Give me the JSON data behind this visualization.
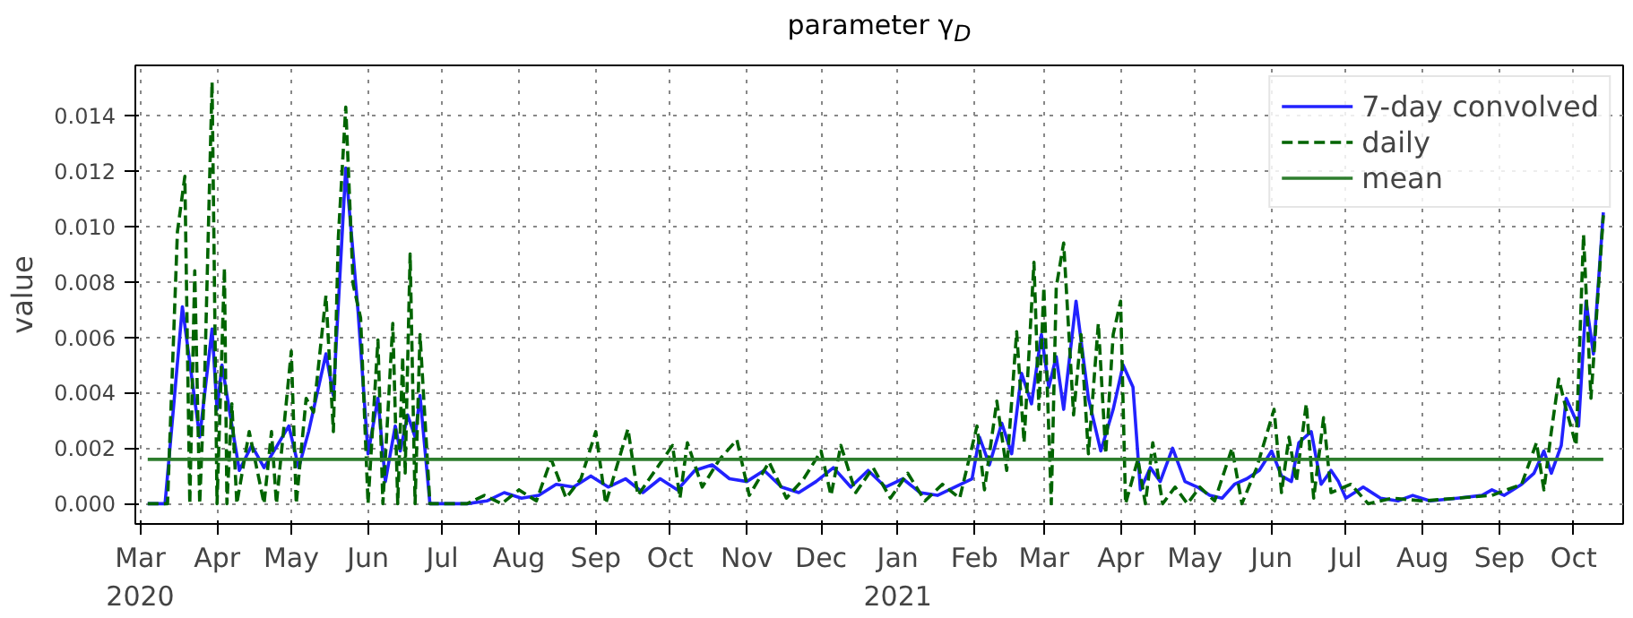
{
  "chart_data": {
    "type": "line",
    "title": "parameter γ$_{D}$",
    "ylabel": "value",
    "xlim": [
      "2020-02-28",
      "2021-10-21"
    ],
    "ylim": [
      -0.00073,
      0.0158
    ],
    "yticks": [
      {
        "value": 0,
        "label": "0.000"
      },
      {
        "value": 0.002,
        "label": "0.002"
      },
      {
        "value": 0.004,
        "label": "0.004"
      },
      {
        "value": 0.006,
        "label": "0.006"
      },
      {
        "value": 0.008,
        "label": "0.008"
      },
      {
        "value": 0.01,
        "label": "0.010"
      },
      {
        "value": 0.012,
        "label": "0.012"
      },
      {
        "value": 0.014,
        "label": "0.014"
      }
    ],
    "xticks": [
      {
        "value": "2020-03-01",
        "label": "Mar\n2020"
      },
      {
        "value": "2020-04-01",
        "label": "Apr"
      },
      {
        "value": "2020-05-01",
        "label": "May"
      },
      {
        "value": "2020-06-01",
        "label": "Jun"
      },
      {
        "value": "2020-07-01",
        "label": "Jul"
      },
      {
        "value": "2020-08-01",
        "label": "Aug"
      },
      {
        "value": "2020-09-01",
        "label": "Sep"
      },
      {
        "value": "2020-10-01",
        "label": "Oct"
      },
      {
        "value": "2020-11-01",
        "label": "Nov"
      },
      {
        "value": "2020-12-01",
        "label": "Dec"
      },
      {
        "value": "2021-01-01",
        "label": "Jan\n2021"
      },
      {
        "value": "2021-02-01",
        "label": "Feb"
      },
      {
        "value": "2021-03-01",
        "label": "Mar"
      },
      {
        "value": "2021-04-01",
        "label": "Apr"
      },
      {
        "value": "2021-05-01",
        "label": "May"
      },
      {
        "value": "2021-06-01",
        "label": "Jun"
      },
      {
        "value": "2021-07-01",
        "label": "Jul"
      },
      {
        "value": "2021-08-01",
        "label": "Aug"
      },
      {
        "value": "2021-09-01",
        "label": "Sep"
      },
      {
        "value": "2021-10-01",
        "label": "Oct"
      }
    ],
    "grid": true,
    "legend": "top right",
    "series": [
      {
        "name": "7-day convolved",
        "color": "#2222ff",
        "line_style": "solid",
        "x": [
          "2020-03-04",
          "2020-03-11",
          "2020-03-18",
          "2020-03-25",
          "2020-03-30",
          "2020-04-01",
          "2020-04-03",
          "2020-04-10",
          "2020-04-15",
          "2020-04-20",
          "2020-04-30",
          "2020-05-04",
          "2020-05-08",
          "2020-05-15",
          "2020-05-18",
          "2020-05-23",
          "2020-05-28",
          "2020-06-01",
          "2020-06-05",
          "2020-06-08",
          "2020-06-12",
          "2020-06-14",
          "2020-06-17",
          "2020-06-20",
          "2020-06-22",
          "2020-06-26",
          "2020-07-11",
          "2020-07-19",
          "2020-07-26",
          "2020-08-02",
          "2020-08-09",
          "2020-08-16",
          "2020-08-23",
          "2020-08-30",
          "2020-09-06",
          "2020-09-13",
          "2020-09-20",
          "2020-09-27",
          "2020-10-04",
          "2020-10-11",
          "2020-10-18",
          "2020-10-25",
          "2020-11-01",
          "2020-11-08",
          "2020-11-15",
          "2020-11-22",
          "2020-11-29",
          "2020-12-06",
          "2020-12-13",
          "2020-12-20",
          "2020-12-27",
          "2021-01-03",
          "2021-01-10",
          "2021-01-17",
          "2021-01-24",
          "2021-01-31",
          "2021-02-03",
          "2021-02-07",
          "2021-02-12",
          "2021-02-16",
          "2021-02-20",
          "2021-02-24",
          "2021-02-28",
          "2021-03-03",
          "2021-03-06",
          "2021-03-09",
          "2021-03-14",
          "2021-03-19",
          "2021-03-24",
          "2021-03-29",
          "2021-04-02",
          "2021-04-06",
          "2021-04-09",
          "2021-04-13",
          "2021-04-17",
          "2021-04-22",
          "2021-04-27",
          "2021-05-02",
          "2021-05-07",
          "2021-05-12",
          "2021-05-17",
          "2021-05-22",
          "2021-05-27",
          "2021-06-01",
          "2021-06-05",
          "2021-06-09",
          "2021-06-12",
          "2021-06-17",
          "2021-06-21",
          "2021-06-25",
          "2021-06-28",
          "2021-07-01",
          "2021-07-08",
          "2021-07-15",
          "2021-07-22",
          "2021-07-28",
          "2021-08-04",
          "2021-08-15",
          "2021-08-25",
          "2021-08-29",
          "2021-09-03",
          "2021-09-10",
          "2021-09-15",
          "2021-09-19",
          "2021-09-22",
          "2021-09-26",
          "2021-09-28",
          "2021-10-03",
          "2021-10-06",
          "2021-10-09",
          "2021-10-13"
        ],
        "values": [
          0,
          0,
          0.0071,
          0.0024,
          0.0063,
          0.0034,
          0.005,
          0.0012,
          0.0021,
          0.0013,
          0.0028,
          0.0013,
          0.0026,
          0.0054,
          0.0039,
          0.0121,
          0.0069,
          0.0018,
          0.0038,
          0.0008,
          0.0028,
          0.0019,
          0.0032,
          0.0024,
          0.0039,
          0,
          0,
          0.0001,
          0.0004,
          0.0002,
          0.0003,
          0.0007,
          0.0006,
          0.001,
          0.0006,
          0.0009,
          0.0004,
          0.0009,
          0.0005,
          0.0012,
          0.0014,
          0.0009,
          0.0008,
          0.0012,
          0.0006,
          0.0004,
          0.0008,
          0.0013,
          0.0006,
          0.0012,
          0.0006,
          0.0009,
          0.0004,
          0.0003,
          0.0006,
          0.0009,
          0.0024,
          0.0014,
          0.0029,
          0.0018,
          0.0047,
          0.0036,
          0.0061,
          0.0042,
          0.0053,
          0.0034,
          0.0073,
          0.0038,
          0.0019,
          0.0034,
          0.005,
          0.0042,
          0.0005,
          0.0013,
          0.0008,
          0.002,
          0.0008,
          0.0006,
          0.0003,
          0.0002,
          0.0007,
          0.0009,
          0.0012,
          0.0019,
          0.001,
          0.0008,
          0.0022,
          0.0026,
          0.0007,
          0.0012,
          0.0008,
          0.0002,
          0.0006,
          0.0002,
          0.0001,
          0.0003,
          0.0001,
          0.0002,
          0.0003,
          0.0005,
          0.0003,
          0.0007,
          0.0011,
          0.0019,
          0.0011,
          0.0021,
          0.0038,
          0.0028,
          0.0073,
          0.0054,
          0.0105
        ]
      },
      {
        "name": "daily",
        "color": "#006400",
        "line_style": "dashed",
        "x": [
          "2020-03-04",
          "2020-03-12",
          "2020-03-16",
          "2020-03-19",
          "2020-03-21",
          "2020-03-23",
          "2020-03-25",
          "2020-03-27",
          "2020-03-30",
          "2020-04-01",
          "2020-04-04",
          "2020-04-05",
          "2020-04-07",
          "2020-04-09",
          "2020-04-14",
          "2020-04-20",
          "2020-04-23",
          "2020-04-25",
          "2020-05-01",
          "2020-05-03",
          "2020-05-07",
          "2020-05-10",
          "2020-05-15",
          "2020-05-18",
          "2020-05-20",
          "2020-05-23",
          "2020-05-26",
          "2020-05-29",
          "2020-06-01",
          "2020-06-05",
          "2020-06-07",
          "2020-06-11",
          "2020-06-13",
          "2020-06-15",
          "2020-06-16",
          "2020-06-18",
          "2020-06-20",
          "2020-06-22",
          "2020-06-26",
          "2020-07-11",
          "2020-07-18",
          "2020-07-25",
          "2020-08-01",
          "2020-08-08",
          "2020-08-14",
          "2020-08-20",
          "2020-08-26",
          "2020-09-01",
          "2020-09-05",
          "2020-09-14",
          "2020-09-18",
          "2020-09-25",
          "2020-10-02",
          "2020-10-05",
          "2020-10-08",
          "2020-10-14",
          "2020-10-21",
          "2020-10-28",
          "2020-11-02",
          "2020-11-10",
          "2020-11-17",
          "2020-11-24",
          "2020-12-01",
          "2020-12-05",
          "2020-12-09",
          "2020-12-15",
          "2020-12-22",
          "2020-12-29",
          "2021-01-05",
          "2021-01-12",
          "2021-01-19",
          "2021-01-26",
          "2021-02-02",
          "2021-02-05",
          "2021-02-10",
          "2021-02-14",
          "2021-02-18",
          "2021-02-21",
          "2021-02-25",
          "2021-02-27",
          "2021-03-01",
          "2021-03-04",
          "2021-03-06",
          "2021-03-09",
          "2021-03-13",
          "2021-03-16",
          "2021-03-19",
          "2021-03-23",
          "2021-03-26",
          "2021-03-29",
          "2021-04-01",
          "2021-04-03",
          "2021-04-08",
          "2021-04-11",
          "2021-04-14",
          "2021-04-18",
          "2021-04-23",
          "2021-04-28",
          "2021-05-03",
          "2021-05-09",
          "2021-05-16",
          "2021-05-20",
          "2021-05-26",
          "2021-06-02",
          "2021-06-05",
          "2021-06-08",
          "2021-06-11",
          "2021-06-15",
          "2021-06-18",
          "2021-06-22",
          "2021-06-25",
          "2021-07-03",
          "2021-07-10",
          "2021-07-20",
          "2021-08-01",
          "2021-08-15",
          "2021-08-29",
          "2021-09-10",
          "2021-09-16",
          "2021-09-19",
          "2021-09-22",
          "2021-09-25",
          "2021-09-28",
          "2021-10-02",
          "2021-10-05",
          "2021-10-08",
          "2021-10-13"
        ],
        "values": [
          0,
          0,
          0.0098,
          0.0118,
          0,
          0.0084,
          0,
          0.0045,
          0.0152,
          0,
          0.0085,
          0,
          0.0036,
          0,
          0.0026,
          0,
          0.0026,
          0,
          0.0055,
          0,
          0.0038,
          0.0033,
          0.0075,
          0.0026,
          0.0096,
          0.0143,
          0.0079,
          0.0067,
          0,
          0.0059,
          0,
          0.0065,
          0,
          0.0053,
          0.0011,
          0.009,
          0,
          0.0061,
          0,
          0,
          0.0003,
          0,
          0.0005,
          0.0001,
          0.0016,
          0.0002,
          0.0009,
          0.0026,
          0,
          0.0027,
          0.0003,
          0.0012,
          0.0021,
          0.0002,
          0.0022,
          0.0006,
          0.0016,
          0.0023,
          0.0003,
          0.0015,
          0.0002,
          0.0009,
          0.0019,
          0.0003,
          0.0021,
          0.0004,
          0.0013,
          0.0002,
          0.0011,
          0.0001,
          0.0007,
          0.0002,
          0.0028,
          0.0005,
          0.0037,
          0.0012,
          0.0062,
          0.0022,
          0.0087,
          0.0034,
          0.0078,
          0,
          0.0078,
          0.0094,
          0.0032,
          0.0061,
          0.0018,
          0.0065,
          0.0018,
          0.0061,
          0.0073,
          0,
          0.0016,
          0,
          0.0022,
          0,
          0.0006,
          0,
          0.0006,
          0.0001,
          0.002,
          0,
          0.0013,
          0.0034,
          0.0004,
          0.0024,
          0.0008,
          0.0036,
          0.0002,
          0.0031,
          0.0004,
          0.0007,
          0,
          0.0002,
          0.0001,
          0.0002,
          0.0003,
          0.0007,
          0.0022,
          0.0005,
          0.0026,
          0.0045,
          0.0034,
          0.0021,
          0.0097,
          0.0038,
          0.0104
        ]
      }
    ],
    "ref_lines": [
      {
        "axis": "y",
        "value": 0.0016,
        "label": "mean",
        "color": "#2e7d2e",
        "line_style": "solid"
      }
    ]
  }
}
